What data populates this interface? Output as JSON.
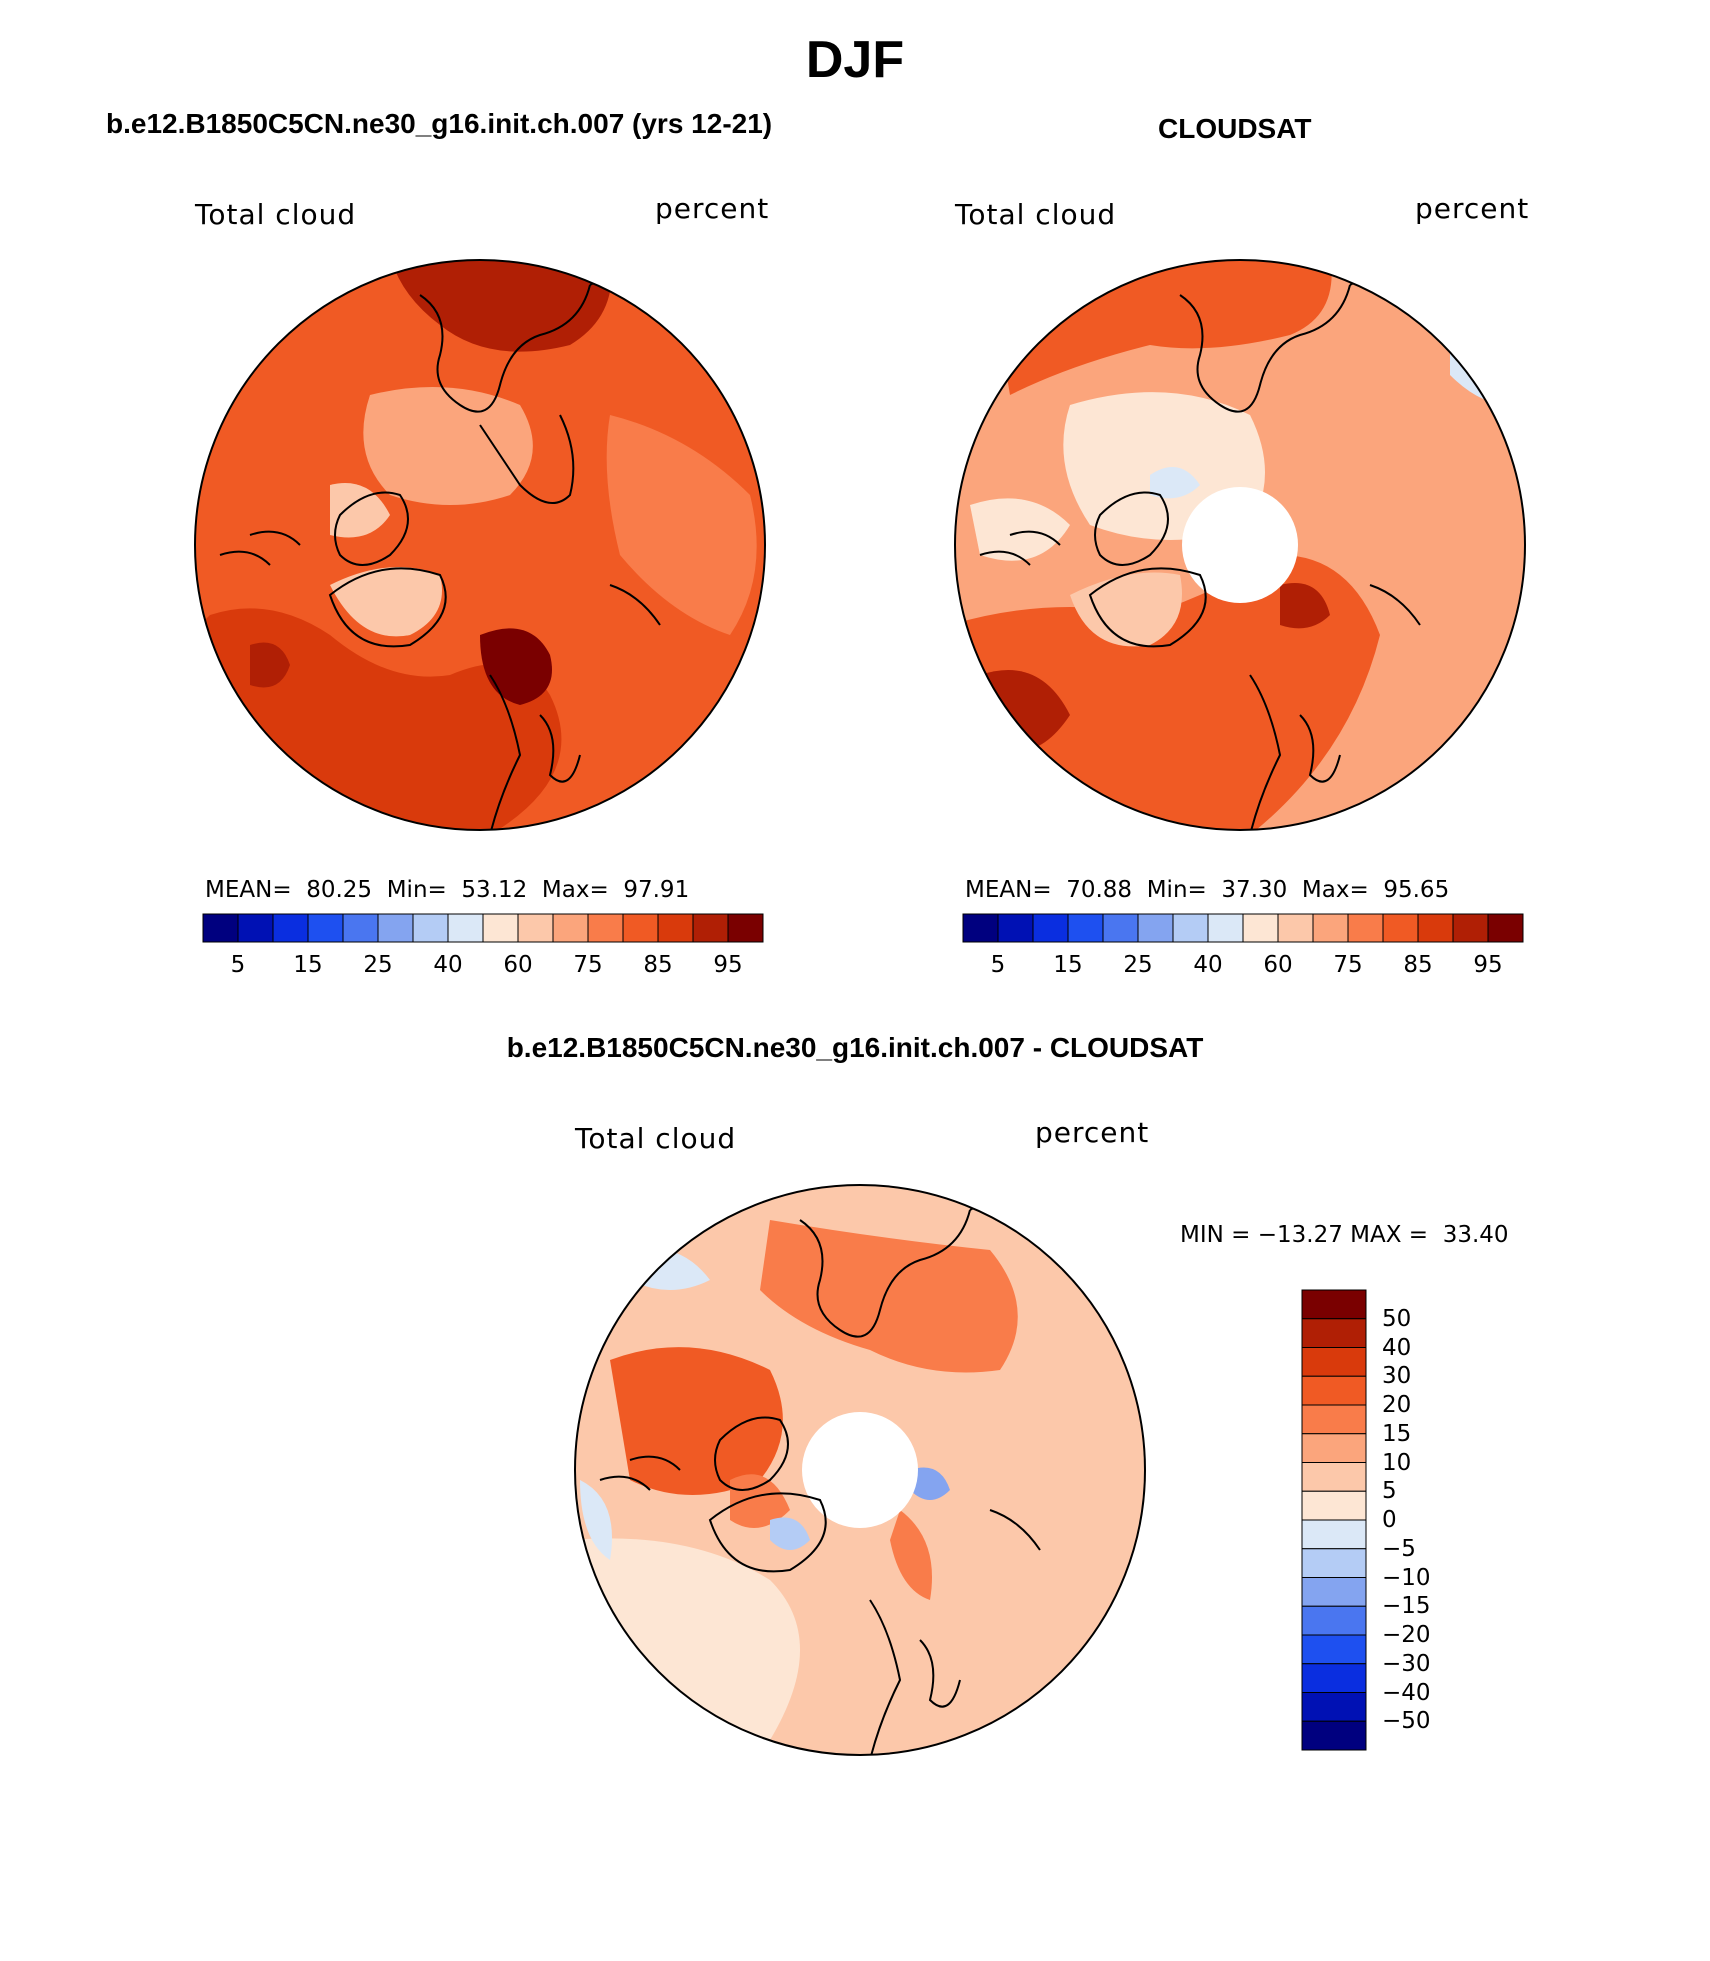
{
  "figure": {
    "title": "DJF",
    "panels": [
      {
        "id": "model",
        "title": "b.e12.B1850C5CN.ne30_g16.init.ch.007 (yrs 12-21)",
        "variable": "Total cloud",
        "units": "percent",
        "stats": {
          "mean_label": "MEAN=",
          "mean": "80.25",
          "min_label": "Min=",
          "min": "53.12",
          "max_label": "Max=",
          "max": "97.91"
        },
        "colorbar_ticks": [
          "5",
          "15",
          "25",
          "40",
          "60",
          "75",
          "85",
          "95"
        ]
      },
      {
        "id": "obs",
        "title": "CLOUDSAT",
        "variable": "Total cloud",
        "units": "percent",
        "stats": {
          "mean_label": "MEAN=",
          "mean": "70.88",
          "min_label": "Min=",
          "min": "37.30",
          "max_label": "Max=",
          "max": "95.65"
        },
        "colorbar_ticks": [
          "5",
          "15",
          "25",
          "40",
          "60",
          "75",
          "85",
          "95"
        ]
      },
      {
        "id": "diff",
        "title": "b.e12.B1850C5CN.ne30_g16.init.ch.007 - CLOUDSAT",
        "variable": "Total cloud",
        "units": "percent",
        "minmax_text": "MIN = −13.27 MAX =  33.40",
        "colorbar_ticks": [
          "50",
          "40",
          "30",
          "20",
          "15",
          "10",
          "5",
          "0",
          "−5",
          "−10",
          "−15",
          "−20",
          "−30",
          "−40",
          "−50"
        ]
      }
    ],
    "colors": {
      "abs_scale": [
        "#00007f",
        "#0011b4",
        "#0a2ee0",
        "#1e50f0",
        "#4a76f0",
        "#84a4f0",
        "#b4ccf5",
        "#dbe8f7",
        "#fde6d4",
        "#fcc8aa",
        "#fba57c",
        "#f97c4a",
        "#f05a24",
        "#d93a0c",
        "#b01f05",
        "#7a0000"
      ],
      "diff_scale": [
        "#7a0000",
        "#b01f05",
        "#d93a0c",
        "#f05a24",
        "#f97c4a",
        "#fba57c",
        "#fcc8aa",
        "#fde6d4",
        "#dbe8f7",
        "#b4ccf5",
        "#84a4f0",
        "#4a76f0",
        "#1e50f0",
        "#0a2ee0",
        "#0011b4",
        "#00007f"
      ]
    }
  }
}
